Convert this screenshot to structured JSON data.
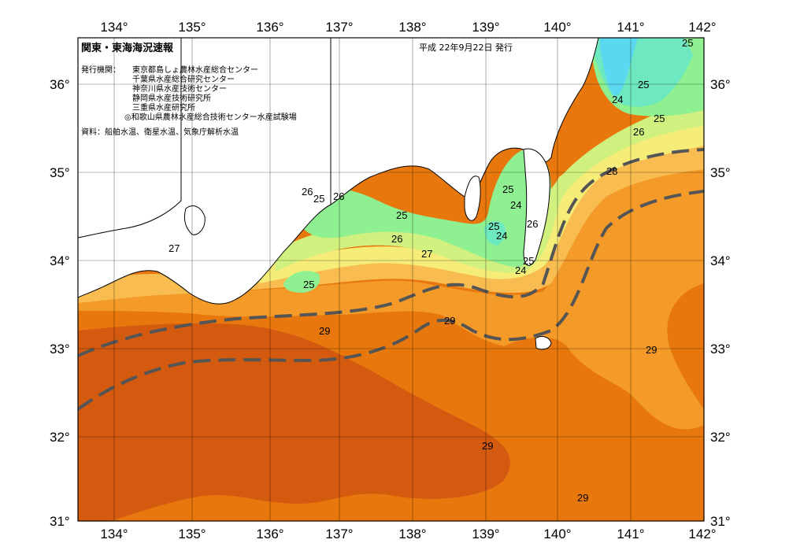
{
  "title": "関東・東海海況速報",
  "date": "平成 22年9月22日 発行",
  "issuer_label": "発行機関：",
  "issuers": [
    "東京都島しょ農林水産総合センター",
    "千葉県水産総合研究センター",
    "神奈川県水産技術センター",
    "静岡県水産技術研究所",
    "三重県水産研究所",
    "◎和歌山県農林水産総合技術センター水産試験場"
  ],
  "source": "資料：船舶水温、衛星水温、気象庁解析水温",
  "longitude_labels": [
    "134°",
    "135°",
    "136°",
    "137°",
    "138°",
    "139°",
    "140°",
    "141°",
    "142°"
  ],
  "latitude_labels": [
    "36°",
    "35°",
    "34°",
    "33°",
    "32°",
    "31°"
  ],
  "isotherm_labels": {
    "t_24": "24",
    "t_25": "25",
    "t_26": "26",
    "t_27": "27",
    "t_28": "28",
    "t_29": "29"
  },
  "colors": {
    "t29_dark": "#d45a10",
    "t29": "#e8780e",
    "t28": "#f39a28",
    "t27": "#f8bc50",
    "t26": "#f6ec78",
    "t25_5": "#d0f080",
    "t25": "#8ef090",
    "t24": "#6ee8c0",
    "t23": "#5ad8f0",
    "land": "#ffffff",
    "kuroshio": "#555555"
  }
}
